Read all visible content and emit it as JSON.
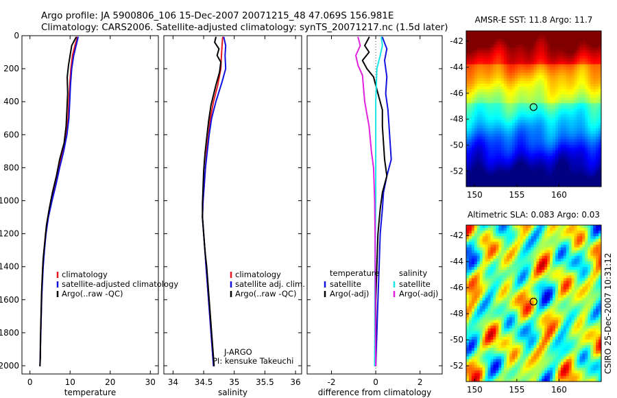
{
  "figure_title": {
    "line1": "Argo profile: JA 5900806_106 15-Dec-2007 20071215_48 47.069S 156.981E",
    "line2": "Climatology: CARS2006. Satellite-adjusted climatology: synTS_20071217.nc (1.5d later)"
  },
  "side_stamp": "CSIRO 25-Dec-2007 10:31:12",
  "notes": {
    "program": "J-ARGO",
    "pi": "PI: kensuke Takeuchi"
  },
  "colors": {
    "climatology": "#e8161b",
    "satellite": "#1010e0",
    "argo": "#000000",
    "diff_satellite": "#16e6e6",
    "diff_argo": "#e020e0"
  },
  "chart_data": [
    {
      "type": "line",
      "name": "temperature-panel",
      "xlabel": "temperature",
      "ylabel": "",
      "xlim": [
        -2,
        32
      ],
      "ylim": [
        2050,
        0
      ],
      "xticks": [
        "0",
        "10",
        "20",
        "30"
      ],
      "xtick_values": [
        0,
        10,
        20,
        30
      ],
      "yticks": [
        "0",
        "200",
        "400",
        "600",
        "800",
        "1000",
        "1200",
        "1400",
        "1600",
        "1800",
        "2000"
      ],
      "ytick_values": [
        0,
        200,
        400,
        600,
        800,
        1000,
        1200,
        1400,
        1600,
        1800,
        2000
      ],
      "legend": {
        "placement": "lower-middle",
        "entries": [
          "climatology",
          "satellite-adjusted climatology",
          "Argo(..raw -QC)"
        ]
      },
      "series": [
        {
          "name": "climatology",
          "color_key": "climatology",
          "points": [
            [
              11.8,
              10
            ],
            [
              11.2,
              60
            ],
            [
              10.6,
              120
            ],
            [
              10.2,
              200
            ],
            [
              9.9,
              300
            ],
            [
              9.7,
              400
            ],
            [
              9.5,
              500
            ],
            [
              9.0,
              600
            ],
            [
              8.2,
              700
            ],
            [
              7.2,
              800
            ],
            [
              6.3,
              900
            ],
            [
              5.3,
              1000
            ],
            [
              4.5,
              1100
            ],
            [
              3.9,
              1200
            ],
            [
              3.5,
              1300
            ],
            [
              3.2,
              1400
            ],
            [
              3.0,
              1500
            ],
            [
              2.9,
              1600
            ],
            [
              2.8,
              1700
            ],
            [
              2.7,
              1800
            ],
            [
              2.6,
              1900
            ],
            [
              2.5,
              2000
            ]
          ]
        },
        {
          "name": "satellite-adjusted climatology",
          "color_key": "satellite",
          "points": [
            [
              12.0,
              10
            ],
            [
              11.5,
              60
            ],
            [
              10.9,
              120
            ],
            [
              10.4,
              200
            ],
            [
              10.1,
              300
            ],
            [
              9.9,
              400
            ],
            [
              9.7,
              500
            ],
            [
              9.2,
              600
            ],
            [
              8.4,
              700
            ],
            [
              7.4,
              800
            ],
            [
              6.5,
              900
            ],
            [
              5.5,
              1000
            ],
            [
              4.6,
              1100
            ],
            [
              4.0,
              1200
            ],
            [
              3.6,
              1300
            ],
            [
              3.3,
              1400
            ],
            [
              3.1,
              1500
            ],
            [
              2.9,
              1600
            ],
            [
              2.8,
              1700
            ],
            [
              2.7,
              1800
            ],
            [
              2.6,
              1900
            ],
            [
              2.5,
              2000
            ]
          ]
        },
        {
          "name": "Argo(..raw -QC)",
          "color_key": "argo",
          "points": [
            [
              11.5,
              10
            ],
            [
              10.4,
              60
            ],
            [
              10.0,
              120
            ],
            [
              9.6,
              180
            ],
            [
              9.3,
              250
            ],
            [
              9.4,
              350
            ],
            [
              9.2,
              450
            ],
            [
              9.0,
              550
            ],
            [
              8.5,
              650
            ],
            [
              7.4,
              750
            ],
            [
              6.6,
              850
            ],
            [
              5.6,
              950
            ],
            [
              4.8,
              1050
            ],
            [
              4.1,
              1150
            ],
            [
              3.7,
              1250
            ],
            [
              3.3,
              1350
            ],
            [
              3.1,
              1450
            ],
            [
              2.9,
              1550
            ],
            [
              2.8,
              1650
            ],
            [
              2.7,
              1750
            ],
            [
              2.6,
              1850
            ],
            [
              2.6,
              1950
            ],
            [
              2.5,
              2000
            ]
          ]
        }
      ]
    },
    {
      "type": "line",
      "name": "salinity-panel",
      "xlabel": "salinity",
      "xlim": [
        33.85,
        36.1
      ],
      "ylim": [
        2050,
        0
      ],
      "xticks": [
        "34",
        "34.5",
        "35",
        "35.5",
        "36"
      ],
      "xtick_values": [
        34,
        34.5,
        35,
        35.5,
        36
      ],
      "legend": {
        "placement": "lower-right",
        "entries": [
          "climatology",
          "satellite adj. clim.",
          "Argo(..raw -QC)"
        ]
      },
      "series": [
        {
          "name": "climatology",
          "color_key": "climatology",
          "points": [
            [
              34.81,
              10
            ],
            [
              34.8,
              60
            ],
            [
              34.79,
              120
            ],
            [
              34.78,
              200
            ],
            [
              34.73,
              300
            ],
            [
              34.66,
              400
            ],
            [
              34.61,
              500
            ],
            [
              34.58,
              600
            ],
            [
              34.55,
              700
            ],
            [
              34.53,
              800
            ],
            [
              34.51,
              900
            ],
            [
              34.49,
              1000
            ],
            [
              34.48,
              1100
            ],
            [
              34.5,
              1200
            ],
            [
              34.52,
              1300
            ],
            [
              34.54,
              1400
            ],
            [
              34.56,
              1500
            ],
            [
              34.58,
              1600
            ],
            [
              34.6,
              1700
            ],
            [
              34.62,
              1800
            ],
            [
              34.64,
              1900
            ],
            [
              34.66,
              2000
            ]
          ]
        },
        {
          "name": "satellite adj. clim.",
          "color_key": "satellite",
          "points": [
            [
              34.83,
              10
            ],
            [
              34.86,
              60
            ],
            [
              34.85,
              120
            ],
            [
              34.86,
              200
            ],
            [
              34.8,
              280
            ],
            [
              34.7,
              400
            ],
            [
              34.63,
              500
            ],
            [
              34.59,
              600
            ],
            [
              34.56,
              700
            ],
            [
              34.53,
              800
            ],
            [
              34.51,
              900
            ],
            [
              34.49,
              1000
            ],
            [
              34.48,
              1100
            ],
            [
              34.5,
              1200
            ],
            [
              34.52,
              1300
            ],
            [
              34.54,
              1400
            ],
            [
              34.56,
              1500
            ],
            [
              34.58,
              1600
            ],
            [
              34.6,
              1700
            ],
            [
              34.62,
              1800
            ],
            [
              34.64,
              1900
            ],
            [
              34.66,
              2000
            ]
          ]
        },
        {
          "name": "Argo(..raw -QC)",
          "color_key": "argo",
          "points": [
            [
              34.7,
              10
            ],
            [
              34.68,
              40
            ],
            [
              34.75,
              80
            ],
            [
              34.72,
              120
            ],
            [
              34.78,
              160
            ],
            [
              34.76,
              220
            ],
            [
              34.7,
              300
            ],
            [
              34.62,
              420
            ],
            [
              34.58,
              520
            ],
            [
              34.55,
              620
            ],
            [
              34.52,
              720
            ],
            [
              34.5,
              820
            ],
            [
              34.49,
              920
            ],
            [
              34.48,
              1020
            ],
            [
              34.48,
              1100
            ],
            [
              34.5,
              1200
            ],
            [
              34.52,
              1300
            ],
            [
              34.55,
              1400
            ],
            [
              34.57,
              1500
            ],
            [
              34.59,
              1600
            ],
            [
              34.61,
              1700
            ],
            [
              34.63,
              1800
            ],
            [
              34.65,
              1900
            ],
            [
              34.67,
              2000
            ]
          ]
        }
      ]
    },
    {
      "type": "line",
      "name": "difference-panel",
      "xlabel": "difference from climatology",
      "xlim": [
        -3.1,
        3.0
      ],
      "ylim": [
        2050,
        0
      ],
      "xticks": [
        "-2",
        "0",
        "2"
      ],
      "xtick_values": [
        -2,
        0,
        2
      ],
      "legend": {
        "placement": "lower-middle",
        "temperature_heading": "temperature",
        "salinity_heading": "salinity",
        "temperature_entries": [
          "satellite",
          "Argo(-adj)"
        ],
        "salinity_entries": [
          "satellite",
          "Argo(-adj)"
        ]
      },
      "series": [
        {
          "name": "temperature satellite",
          "color_key": "satellite",
          "points": [
            [
              0.3,
              10
            ],
            [
              0.5,
              80
            ],
            [
              0.4,
              150
            ],
            [
              0.5,
              250
            ],
            [
              0.45,
              350
            ],
            [
              0.55,
              450
            ],
            [
              0.6,
              550
            ],
            [
              0.65,
              650
            ],
            [
              0.7,
              750
            ],
            [
              0.5,
              850
            ],
            [
              0.35,
              950
            ],
            [
              0.3,
              1050
            ],
            [
              0.2,
              1200
            ],
            [
              0.15,
              1400
            ],
            [
              0.1,
              1600
            ],
            [
              0.05,
              1800
            ],
            [
              0.0,
              2000
            ]
          ]
        },
        {
          "name": "temperature Argo(-adj)",
          "color_key": "argo",
          "points": [
            [
              -0.3,
              10
            ],
            [
              -0.5,
              60
            ],
            [
              -0.3,
              100
            ],
            [
              -0.6,
              150
            ],
            [
              -0.4,
              200
            ],
            [
              -0.1,
              250
            ],
            [
              0.1,
              350
            ],
            [
              0.3,
              450
            ],
            [
              0.3,
              550
            ],
            [
              0.35,
              650
            ],
            [
              0.4,
              750
            ],
            [
              0.5,
              850
            ],
            [
              0.3,
              950
            ],
            [
              0.2,
              1050
            ],
            [
              0.1,
              1200
            ],
            [
              0.05,
              1400
            ],
            [
              0.0,
              1600
            ],
            [
              0.0,
              1800
            ],
            [
              0.0,
              2000
            ]
          ]
        },
        {
          "name": "salinity satellite",
          "color_key": "diff_satellite",
          "points": [
            [
              0.25,
              10
            ],
            [
              0.3,
              60
            ],
            [
              0.2,
              120
            ],
            [
              0.05,
              200
            ],
            [
              0.0,
              400
            ],
            [
              0.0,
              600
            ],
            [
              0.0,
              800
            ],
            [
              0.0,
              1000
            ],
            [
              -0.02,
              1200
            ],
            [
              -0.03,
              1400
            ],
            [
              -0.04,
              1600
            ],
            [
              -0.04,
              1800
            ],
            [
              -0.05,
              2000
            ]
          ]
        },
        {
          "name": "salinity Argo(-adj)",
          "color_key": "diff_argo",
          "points": [
            [
              -0.8,
              10
            ],
            [
              -0.7,
              60
            ],
            [
              -0.9,
              120
            ],
            [
              -0.8,
              180
            ],
            [
              -0.6,
              240
            ],
            [
              -0.5,
              400
            ],
            [
              -0.3,
              550
            ],
            [
              -0.2,
              700
            ],
            [
              -0.1,
              800
            ],
            [
              -0.05,
              1000
            ],
            [
              -0.03,
              1200
            ],
            [
              -0.02,
              1500
            ],
            [
              -0.01,
              1800
            ],
            [
              0.0,
              2000
            ]
          ]
        }
      ]
    },
    {
      "type": "heatmap",
      "name": "sst-map",
      "title": "AMSR-E SST: 11.8 Argo: 11.7",
      "xlim": [
        149,
        165
      ],
      "ylim": [
        -53.2,
        -41.2
      ],
      "xticks": [
        "150",
        "155",
        "160"
      ],
      "xtick_values": [
        150,
        155,
        160
      ],
      "yticks": [
        "-42",
        "-44",
        "-46",
        "-48",
        "-50",
        "-52"
      ],
      "ytick_values": [
        -42,
        -44,
        -46,
        -48,
        -50,
        -52
      ],
      "marker": [
        156.98,
        -47.07
      ]
    },
    {
      "type": "heatmap",
      "name": "sla-map",
      "title": "Altimetric SLA: 0.083 Argo: 0.03",
      "xlim": [
        149,
        165
      ],
      "ylim": [
        -53.2,
        -41.2
      ],
      "xticks": [
        "150",
        "155",
        "160"
      ],
      "xtick_values": [
        150,
        155,
        160
      ],
      "yticks": [
        "-42",
        "-44",
        "-46",
        "-48",
        "-50",
        "-52"
      ],
      "ytick_values": [
        -42,
        -44,
        -46,
        -48,
        -50,
        -52
      ],
      "marker": [
        156.98,
        -47.07
      ]
    }
  ]
}
